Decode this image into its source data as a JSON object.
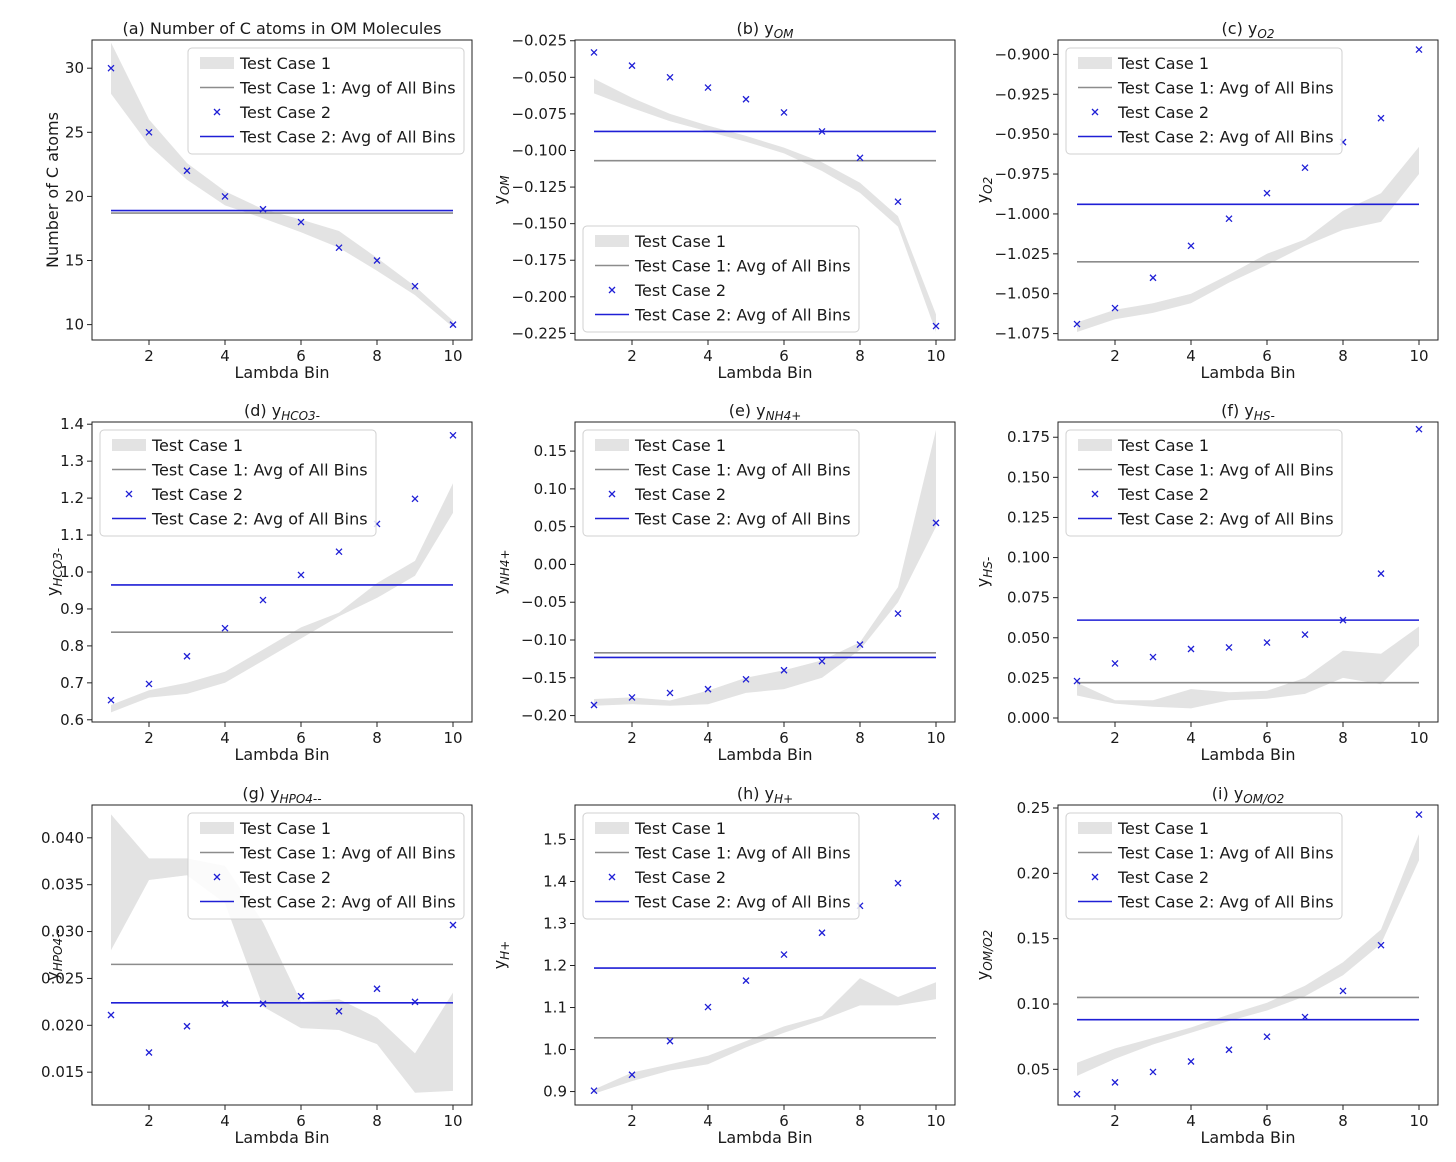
{
  "figure": {
    "xlabel": "Lambda Bin",
    "legend_labels": [
      "Test Case 1",
      "Test Case 1: Avg of All Bins",
      "Test Case 2",
      "Test Case 2: Avg of All Bins"
    ],
    "colors": {
      "band": "#e3e3e3",
      "avg1": "#8c8c8c",
      "series2": "#1f1fd6"
    }
  },
  "chart_data": [
    {
      "type": "line",
      "title": "(a) Number of C atoms in OM Molecules",
      "ylabel": "Number of C atoms",
      "x": [
        1,
        2,
        3,
        4,
        5,
        6,
        7,
        8,
        9,
        10
      ],
      "xlim": [
        0.5,
        10.5
      ],
      "ylim": [
        8.8,
        32.2
      ],
      "yticks": [
        10,
        15,
        20,
        25,
        30
      ],
      "ytick_labels": [
        "10",
        "15",
        "20",
        "25",
        "30"
      ],
      "xticks": [
        2,
        4,
        6,
        8,
        10
      ],
      "band_low": [
        28.0,
        24.0,
        21.3,
        19.3,
        18.3,
        17.2,
        16.0,
        14.2,
        12.3,
        9.8
      ],
      "band_high": [
        32.0,
        26.0,
        22.6,
        20.4,
        19.0,
        18.2,
        17.3,
        15.2,
        13.0,
        10.3
      ],
      "avg1": 18.7,
      "series2": [
        30,
        25,
        22,
        20,
        19,
        18,
        16,
        15,
        13,
        10
      ],
      "avg2": 18.9,
      "legend": "top-right"
    },
    {
      "type": "line",
      "title": "(b) y_OM",
      "ylabel": "y_OM",
      "x": [
        1,
        2,
        3,
        4,
        5,
        6,
        7,
        8,
        9,
        10
      ],
      "xlim": [
        0.5,
        10.5
      ],
      "ylim": [
        -0.2295,
        -0.0245
      ],
      "yticks": [
        -0.225,
        -0.2,
        -0.175,
        -0.15,
        -0.125,
        -0.1,
        -0.075,
        -0.05,
        -0.025
      ],
      "ytick_labels": [
        "−0.225",
        "−0.200",
        "−0.175",
        "−0.150",
        "−0.125",
        "−0.100",
        "−0.075",
        "−0.050",
        "−0.025"
      ],
      "xticks": [
        2,
        4,
        6,
        8,
        10
      ],
      "band_low": [
        -0.061,
        -0.071,
        -0.08,
        -0.087,
        -0.094,
        -0.102,
        -0.114,
        -0.129,
        -0.152,
        -0.224
      ],
      "band_high": [
        -0.051,
        -0.064,
        -0.075,
        -0.083,
        -0.09,
        -0.098,
        -0.108,
        -0.122,
        -0.145,
        -0.212
      ],
      "avg1": -0.107,
      "series2": [
        -0.033,
        -0.042,
        -0.05,
        -0.057,
        -0.065,
        -0.074,
        -0.087,
        -0.105,
        -0.135,
        -0.22
      ],
      "avg2": -0.087,
      "legend": "bottom-left"
    },
    {
      "type": "line",
      "title": "(c) y_O2",
      "ylabel": "y_O2",
      "x": [
        1,
        2,
        3,
        4,
        5,
        6,
        7,
        8,
        9,
        10
      ],
      "xlim": [
        0.5,
        10.5
      ],
      "ylim": [
        -1.079,
        -0.891
      ],
      "yticks": [
        -1.075,
        -1.05,
        -1.025,
        -1.0,
        -0.975,
        -0.95,
        -0.925,
        -0.9
      ],
      "ytick_labels": [
        "−1.075",
        "−1.050",
        "−1.025",
        "−1.000",
        "−0.975",
        "−0.950",
        "−0.925",
        "−0.900"
      ],
      "xticks": [
        2,
        4,
        6,
        8,
        10
      ],
      "band_low": [
        -1.074,
        -1.066,
        -1.062,
        -1.056,
        -1.043,
        -1.032,
        -1.02,
        -1.01,
        -1.005,
        -0.975
      ],
      "band_high": [
        -1.068,
        -1.06,
        -1.056,
        -1.05,
        -1.038,
        -1.025,
        -1.016,
        -0.998,
        -0.987,
        -0.958
      ],
      "avg1": -1.03,
      "series2": [
        -1.069,
        -1.059,
        -1.04,
        -1.02,
        -1.003,
        -0.987,
        -0.971,
        -0.955,
        -0.94,
        -0.897
      ],
      "avg2": -0.994,
      "legend": "top-left"
    },
    {
      "type": "line",
      "title": "(d) y_HCO3-",
      "ylabel": "y_HCO3-",
      "x": [
        1,
        2,
        3,
        4,
        5,
        6,
        7,
        8,
        9,
        10
      ],
      "xlim": [
        0.5,
        10.5
      ],
      "ylim": [
        0.594,
        1.406
      ],
      "yticks": [
        0.6,
        0.7,
        0.8,
        0.9,
        1.0,
        1.1,
        1.2,
        1.3,
        1.4
      ],
      "ytick_labels": [
        "0.6",
        "0.7",
        "0.8",
        "0.9",
        "1.0",
        "1.1",
        "1.2",
        "1.3",
        "1.4"
      ],
      "xticks": [
        2,
        4,
        6,
        8,
        10
      ],
      "band_low": [
        0.62,
        0.66,
        0.67,
        0.7,
        0.76,
        0.82,
        0.88,
        0.93,
        0.99,
        1.16
      ],
      "band_high": [
        0.64,
        0.68,
        0.7,
        0.73,
        0.79,
        0.85,
        0.89,
        0.97,
        1.03,
        1.24
      ],
      "avg1": 0.837,
      "series2": [
        0.653,
        0.697,
        0.772,
        0.848,
        0.924,
        0.992,
        1.055,
        1.13,
        1.198,
        1.37
      ],
      "avg2": 0.965,
      "legend": "top-left"
    },
    {
      "type": "line",
      "title": "(e) y_NH4+",
      "ylabel": "y_NH4+",
      "x": [
        1,
        2,
        3,
        4,
        5,
        6,
        7,
        8,
        9,
        10
      ],
      "xlim": [
        0.5,
        10.5
      ],
      "ylim": [
        -0.2085,
        0.1885
      ],
      "yticks": [
        -0.2,
        -0.15,
        -0.1,
        -0.05,
        0.0,
        0.05,
        0.1,
        0.15
      ],
      "ytick_labels": [
        "−0.20",
        "−0.15",
        "−0.10",
        "−0.05",
        "0.00",
        "0.05",
        "0.10",
        "0.15"
      ],
      "xticks": [
        2,
        4,
        6,
        8,
        10
      ],
      "band_low": [
        -0.187,
        -0.185,
        -0.187,
        -0.185,
        -0.17,
        -0.165,
        -0.15,
        -0.113,
        -0.05,
        0.05
      ],
      "band_high": [
        -0.178,
        -0.176,
        -0.18,
        -0.167,
        -0.15,
        -0.14,
        -0.127,
        -0.103,
        -0.03,
        0.178
      ],
      "avg1": -0.117,
      "series2": [
        -0.186,
        -0.176,
        -0.17,
        -0.165,
        -0.152,
        -0.14,
        -0.128,
        -0.106,
        -0.065,
        0.055
      ],
      "avg2": -0.123,
      "legend": "top-left"
    },
    {
      "type": "line",
      "title": "(f) y_HS-",
      "ylabel": "y_HS-",
      "x": [
        1,
        2,
        3,
        4,
        5,
        6,
        7,
        8,
        9,
        10
      ],
      "xlim": [
        0.5,
        10.5
      ],
      "ylim": [
        -0.0025,
        0.1845
      ],
      "yticks": [
        0.0,
        0.025,
        0.05,
        0.075,
        0.1,
        0.125,
        0.15,
        0.175
      ],
      "ytick_labels": [
        "0.000",
        "0.025",
        "0.050",
        "0.075",
        "0.100",
        "0.125",
        "0.150",
        "0.175"
      ],
      "xticks": [
        2,
        4,
        6,
        8,
        10
      ],
      "band_low": [
        0.014,
        0.009,
        0.007,
        0.006,
        0.011,
        0.012,
        0.015,
        0.025,
        0.021,
        0.045
      ],
      "band_high": [
        0.022,
        0.011,
        0.011,
        0.018,
        0.016,
        0.017,
        0.025,
        0.042,
        0.04,
        0.057
      ],
      "avg1": 0.022,
      "series2": [
        0.023,
        0.034,
        0.038,
        0.043,
        0.044,
        0.047,
        0.052,
        0.061,
        0.09,
        0.18
      ],
      "avg2": 0.061,
      "legend": "top-left"
    },
    {
      "type": "line",
      "title": "(g) y_HPO4--",
      "ylabel": "y_HPO4--",
      "x": [
        1,
        2,
        3,
        4,
        5,
        6,
        7,
        8,
        9,
        10
      ],
      "xlim": [
        0.5,
        10.5
      ],
      "ylim": [
        0.0115,
        0.0435
      ],
      "yticks": [
        0.015,
        0.02,
        0.025,
        0.03,
        0.035,
        0.04
      ],
      "ytick_labels": [
        "0.015",
        "0.020",
        "0.025",
        "0.030",
        "0.035",
        "0.040"
      ],
      "xticks": [
        2,
        4,
        6,
        8,
        10
      ],
      "band_low": [
        0.028,
        0.0355,
        0.036,
        0.033,
        0.022,
        0.0197,
        0.0195,
        0.018,
        0.0128,
        0.013
      ],
      "band_high": [
        0.0425,
        0.0378,
        0.0378,
        0.037,
        0.031,
        0.0225,
        0.0228,
        0.0208,
        0.017,
        0.0235
      ],
      "avg1": 0.0265,
      "series2": [
        0.0211,
        0.0171,
        0.0199,
        0.0223,
        0.0223,
        0.0231,
        0.0215,
        0.0239,
        0.0225,
        0.0307
      ],
      "avg2": 0.0224,
      "legend": "top-right"
    },
    {
      "type": "line",
      "title": "(h) y_H+",
      "ylabel": "y_H+",
      "x": [
        1,
        2,
        3,
        4,
        5,
        6,
        7,
        8,
        9,
        10
      ],
      "xlim": [
        0.5,
        10.5
      ],
      "ylim": [
        0.868,
        1.582
      ],
      "yticks": [
        0.9,
        1.0,
        1.1,
        1.2,
        1.3,
        1.4,
        1.5
      ],
      "ytick_labels": [
        "0.9",
        "1.0",
        "1.1",
        "1.2",
        "1.3",
        "1.4",
        "1.5"
      ],
      "xticks": [
        2,
        4,
        6,
        8,
        10
      ],
      "band_low": [
        0.895,
        0.925,
        0.95,
        0.965,
        1.005,
        1.04,
        1.07,
        1.105,
        1.105,
        1.12
      ],
      "band_high": [
        0.905,
        0.945,
        0.965,
        0.985,
        1.02,
        1.055,
        1.08,
        1.17,
        1.125,
        1.16
      ],
      "avg1": 1.028,
      "series2": [
        0.902,
        0.94,
        1.02,
        1.101,
        1.164,
        1.226,
        1.278,
        1.342,
        1.396,
        1.555
      ],
      "avg2": 1.194,
      "legend": "top-left"
    },
    {
      "type": "line",
      "title": "(i) y_OM/O2",
      "ylabel": "y_OM/O2",
      "x": [
        1,
        2,
        3,
        4,
        5,
        6,
        7,
        8,
        9,
        10
      ],
      "xlim": [
        0.5,
        10.5
      ],
      "ylim": [
        0.0227,
        0.2523
      ],
      "yticks": [
        0.05,
        0.1,
        0.15,
        0.2,
        0.25
      ],
      "ytick_labels": [
        "0.05",
        "0.10",
        "0.15",
        "0.20",
        "0.25"
      ],
      "xticks": [
        2,
        4,
        6,
        8,
        10
      ],
      "band_low": [
        0.045,
        0.058,
        0.069,
        0.078,
        0.087,
        0.095,
        0.106,
        0.122,
        0.146,
        0.21
      ],
      "band_high": [
        0.055,
        0.066,
        0.074,
        0.082,
        0.092,
        0.101,
        0.114,
        0.132,
        0.157,
        0.23
      ],
      "avg1": 0.105,
      "series2": [
        0.031,
        0.04,
        0.048,
        0.056,
        0.065,
        0.075,
        0.09,
        0.11,
        0.145,
        0.245
      ],
      "avg2": 0.088,
      "legend": "top-left"
    }
  ]
}
